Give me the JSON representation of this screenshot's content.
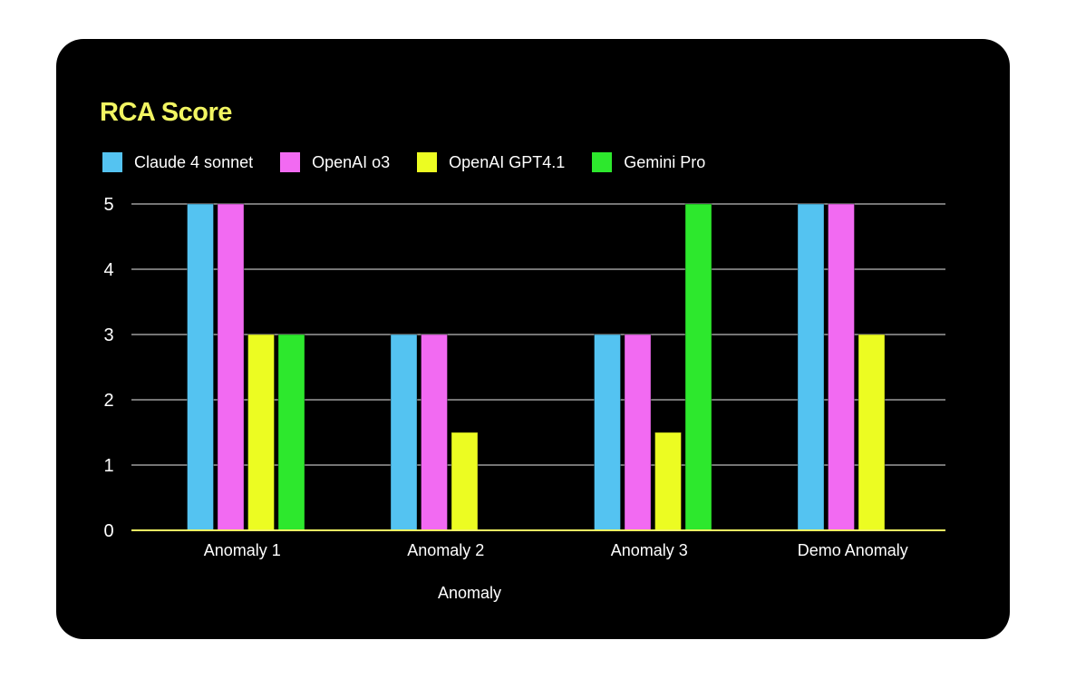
{
  "chart_data": {
    "type": "bar",
    "title": "RCA Score",
    "xlabel": "Anomaly",
    "ylabel": "",
    "categories": [
      "Anomaly 1",
      "Anomaly 2",
      "Anomaly 3",
      "Demo Anomaly"
    ],
    "ylim": [
      0,
      5
    ],
    "yticks": [
      "0",
      "1",
      "2",
      "3",
      "4",
      "5"
    ],
    "grid": true,
    "legend_position": "top-left",
    "series": [
      {
        "name": "Claude 4 sonnet",
        "color": "#54c3f1",
        "values": [
          5,
          3,
          3,
          5
        ]
      },
      {
        "name": "OpenAI o3",
        "color": "#f26af2",
        "values": [
          5,
          3,
          3,
          5
        ]
      },
      {
        "name": "OpenAI GPT4.1",
        "color": "#ecfc22",
        "values": [
          3,
          1.5,
          1.5,
          3
        ]
      },
      {
        "name": "Gemini Pro",
        "color": "#2de82d",
        "values": [
          3,
          null,
          5,
          null
        ]
      }
    ]
  }
}
